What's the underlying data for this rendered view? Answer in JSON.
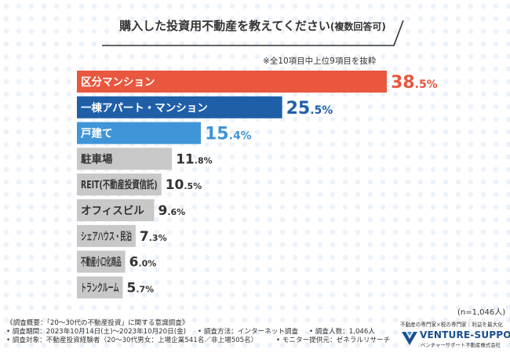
{
  "header": {
    "title": "購入した投資用不動産を教えてください",
    "title_suffix": "(複数回答可)",
    "note": "※全10項目中上位9項目を抜粋"
  },
  "chart_data": {
    "type": "bar",
    "orientation": "horizontal",
    "categories": [
      "区分マンション",
      "一棟アパート・マンション",
      "戸建て",
      "駐車場",
      "REIT(不動産投資信託)",
      "オフィスビル",
      "シェアハウス・民泊",
      "不動産小口化商品",
      "トランクルーム"
    ],
    "values": [
      38.5,
      25.5,
      15.4,
      11.8,
      10.5,
      9.6,
      7.3,
      6.0,
      5.7
    ],
    "unit": "%",
    "colors": [
      "#e9573f",
      "#1f5fa8",
      "#3f95d8",
      "#c8c8c8",
      "#c8c8c8",
      "#c8c8c8",
      "#c8c8c8",
      "#c8c8c8",
      "#c8c8c8"
    ],
    "value_colors": [
      "#e9573f",
      "#1f5fa8",
      "#3f95d8",
      "#333333",
      "#333333",
      "#333333",
      "#333333",
      "#333333",
      "#333333"
    ],
    "xlim": [
      0,
      38.5
    ]
  },
  "sample": "(n=1,046人)",
  "footer": {
    "line1": "《調査概要：「20〜30代の不動産投資」に関する意識調査》",
    "line2_a": "• 調査期間：2023年10月14日(土)〜2023年10月20日(金)",
    "line2_b": "• 調査方法：インターネット調査",
    "line2_c": "• 調査人数：1,046人",
    "line3_a": "• 調査対象：不動産投資経験者（20〜30代男女：上場企業541名／非上場505名）",
    "line3_b": "• モニター提供元：ゼネラルリサーチ"
  },
  "logo": {
    "tagline": "不動産の専門家×税の専門家｜利益を最大化",
    "name": "VENTURE-SUPPORT",
    "sub": "ベンチャーサポート不動産株式会社",
    "color": "#1a4f8f"
  }
}
